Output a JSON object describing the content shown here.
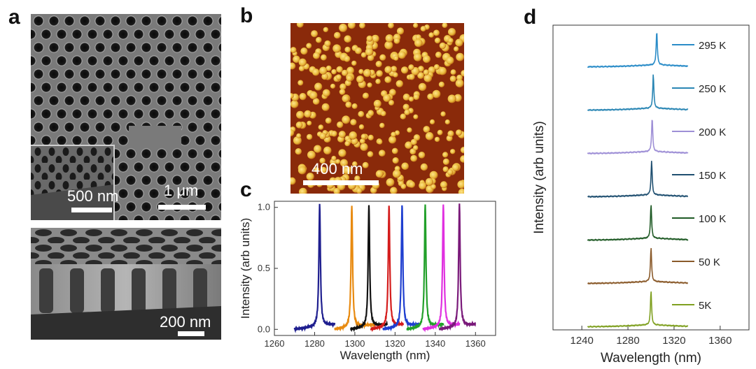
{
  "panels": {
    "a": {
      "letter": "a",
      "top_scale": "1 μm",
      "inset_scale": "500 nm",
      "bottom_scale": "200 nm"
    },
    "b": {
      "letter": "b",
      "scale": "400 nm"
    },
    "c": {
      "letter": "c"
    },
    "d": {
      "letter": "d"
    }
  },
  "chart_data": [
    {
      "id": "c",
      "type": "line",
      "xlabel": "Wavelength (nm)",
      "ylabel": "Intensity (arb units)",
      "xlim": [
        1260,
        1370
      ],
      "ylim": [
        -0.05,
        1.05
      ],
      "xticks": [
        1260,
        1280,
        1300,
        1320,
        1340,
        1360
      ],
      "yticks": [
        0.0,
        0.5,
        1.0
      ],
      "ytick_labels": [
        "0.0",
        "0.5",
        "1.0"
      ],
      "series": [
        {
          "color": "#1f1f8f",
          "x_start": 1270,
          "x_end": 1290,
          "peak_x": 1282.5,
          "peak_y": 1.0
        },
        {
          "color": "#e88a10",
          "x_start": 1290,
          "x_end": 1310,
          "peak_x": 1298.5,
          "peak_y": 1.0
        },
        {
          "color": "#111111",
          "x_start": 1298,
          "x_end": 1316,
          "peak_x": 1307,
          "peak_y": 1.0
        },
        {
          "color": "#d41c1c",
          "x_start": 1308,
          "x_end": 1324,
          "peak_x": 1317,
          "peak_y": 1.0
        },
        {
          "color": "#1f3fd0",
          "x_start": 1314,
          "x_end": 1332,
          "peak_x": 1323.5,
          "peak_y": 1.0
        },
        {
          "color": "#22a02a",
          "x_start": 1326,
          "x_end": 1344,
          "peak_x": 1335,
          "peak_y": 1.0
        },
        {
          "color": "#e030e0",
          "x_start": 1334,
          "x_end": 1352,
          "peak_x": 1344,
          "peak_y": 1.0
        },
        {
          "color": "#7a1a7a",
          "x_start": 1342,
          "x_end": 1360,
          "peak_x": 1352,
          "peak_y": 1.0
        }
      ]
    },
    {
      "id": "d",
      "type": "line",
      "xlabel": "Wavelength (nm)",
      "ylabel": "Intensity (arb units)",
      "xlim": [
        1215,
        1385
      ],
      "xticks": [
        1240,
        1280,
        1320,
        1360
      ],
      "x_start": 1245,
      "x_end": 1332,
      "series": [
        {
          "name": "295 K",
          "color": "#2a8cc8",
          "peak_x": 1305,
          "peak_height": 0.9
        },
        {
          "name": "250 K",
          "color": "#2a86b4",
          "peak_x": 1302,
          "peak_height": 0.9
        },
        {
          "name": "200 K",
          "color": "#9e8fd6",
          "peak_x": 1301,
          "peak_height": 0.9
        },
        {
          "name": "150 K",
          "color": "#1f4f70",
          "peak_x": 1300.5,
          "peak_height": 0.9
        },
        {
          "name": "100 K",
          "color": "#1f5a25",
          "peak_x": 1300,
          "peak_height": 0.9
        },
        {
          "name": "50 K",
          "color": "#8a5a2a",
          "peak_x": 1300,
          "peak_height": 0.9
        },
        {
          "name": "5K",
          "color": "#7fa020",
          "peak_x": 1300,
          "peak_height": 0.9
        }
      ]
    }
  ]
}
